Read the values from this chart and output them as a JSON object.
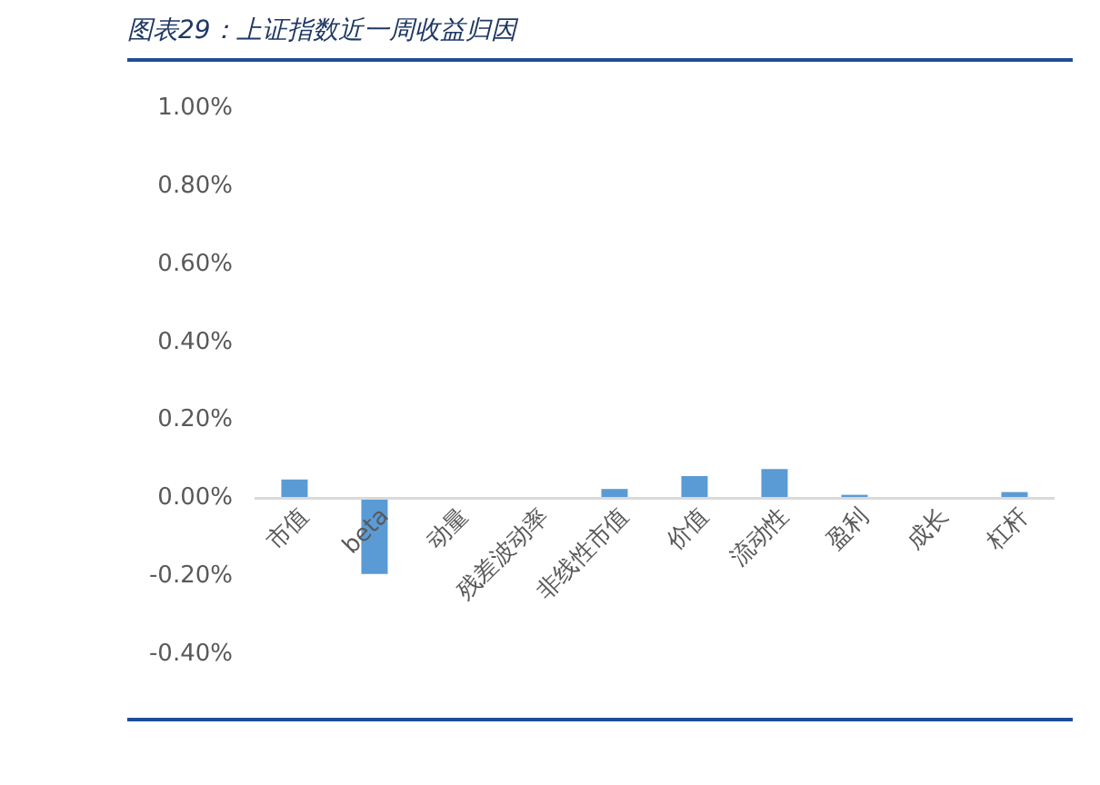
{
  "chart_data": {
    "type": "bar",
    "title": "图表29：上证指数近一周收益归因",
    "categories": [
      "市值",
      "beta",
      "动量",
      "残差波动率",
      "非线性市值",
      "价值",
      "流动性",
      "盈利",
      "成长",
      "杠杆"
    ],
    "values": [
      0.048,
      -0.194,
      0,
      0,
      0.024,
      0.057,
      0.075,
      0.009,
      0,
      0.016
    ],
    "color": "#5b9bd5",
    "ylim": [
      -0.4,
      1.0
    ],
    "yticks": [
      {
        "value": -0.4,
        "label": "-0.40%"
      },
      {
        "value": -0.2,
        "label": "-0.20%"
      },
      {
        "value": 0,
        "label": "0.00%"
      },
      {
        "value": 0.2,
        "label": "0.20%"
      },
      {
        "value": 0.4,
        "label": "0.40%"
      },
      {
        "value": 0.6,
        "label": "0.60%"
      },
      {
        "value": 0.8,
        "label": "0.80%"
      },
      {
        "value": 1.0,
        "label": "1.00%"
      }
    ],
    "grid": false,
    "legend": false
  }
}
